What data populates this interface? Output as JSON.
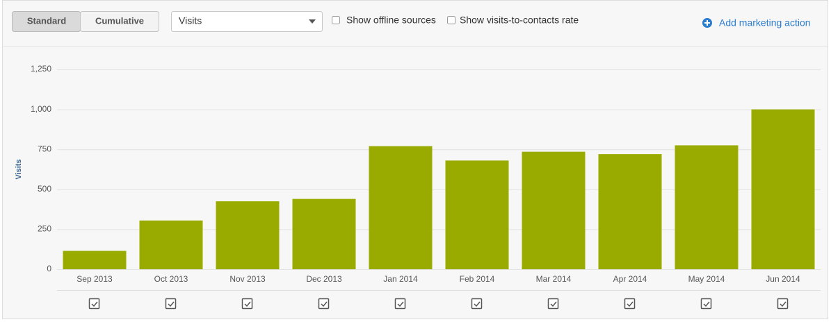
{
  "toolbar": {
    "modes": [
      "Standard",
      "Cumulative"
    ],
    "metric": "Visits",
    "checkboxes": [
      "Show offline sources",
      "Show visits-to-contacts rate"
    ],
    "action": "Add marketing action"
  },
  "chart_data": {
    "type": "bar",
    "y_label": "Visits",
    "categories": [
      "Sep 2013",
      "Oct 2013",
      "Nov 2013",
      "Dec 2013",
      "Jan 2014",
      "Feb 2014",
      "Mar 2014",
      "Apr 2014",
      "May 2014",
      "Jun 2014"
    ],
    "values": [
      115,
      305,
      425,
      440,
      770,
      680,
      735,
      720,
      775,
      1000
    ],
    "color": "#9aab00",
    "ylim": [
      0,
      1250
    ],
    "yticks": [
      0,
      250,
      500,
      750,
      {
        "value": 1000,
        "label": "1,000"
      },
      {
        "value": 1250,
        "label": "1,250"
      }
    ],
    "grid": true
  }
}
